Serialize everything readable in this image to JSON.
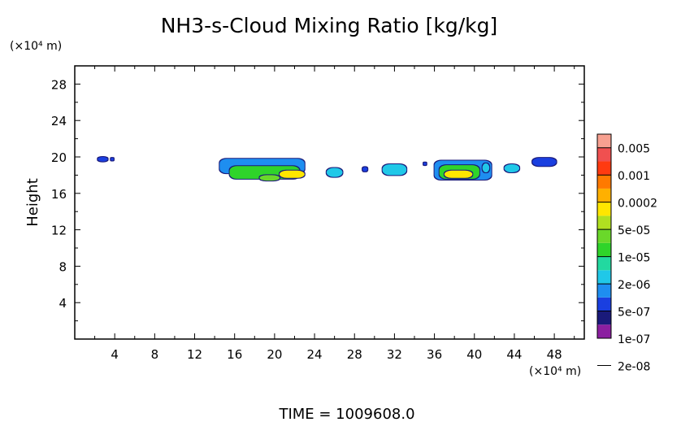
{
  "chart_data": {
    "type": "heatmap",
    "title": "NH3-s-Cloud Mixing Ratio [kg/kg]",
    "xlabel": "",
    "ylabel": "Height",
    "x_unit": "(×10⁴ m)",
    "y_unit": "(×10⁴ m)",
    "xlim": [
      0,
      51
    ],
    "ylim": [
      0,
      30
    ],
    "x_ticks": [
      4,
      8,
      12,
      16,
      20,
      24,
      28,
      32,
      36,
      40,
      44,
      48
    ],
    "y_ticks": [
      4,
      8,
      12,
      16,
      20,
      24,
      28
    ],
    "grid": false,
    "footer": "TIME  =  1009608.0",
    "colorbar": {
      "labels": [
        "0.005",
        "0.001",
        "0.0002",
        "5e-05",
        "1e-05",
        "2e-06",
        "5e-07",
        "1e-07",
        "2e-08"
      ],
      "colors": [
        "#8b1fa0",
        "#1a1a7a",
        "#1a3fe0",
        "#1e8ef0",
        "#20c8e8",
        "#22d9a0",
        "#2fd42a",
        "#6ad82a",
        "#b0e020",
        "#ffe600",
        "#ffb000",
        "#ff7a00",
        "#ff3a10",
        "#f05050",
        "#f7a090"
      ]
    },
    "features": [
      {
        "x0": 2.3,
        "x1": 3.3,
        "y0": 19.5,
        "y1": 20.0,
        "level": 2
      },
      {
        "x0": 3.6,
        "x1": 3.9,
        "y0": 19.6,
        "y1": 19.9,
        "level": 2
      },
      {
        "x0": 14.5,
        "x1": 23.0,
        "y0": 18.2,
        "y1": 19.8,
        "level": 3
      },
      {
        "x0": 15.5,
        "x1": 22.5,
        "y0": 17.6,
        "y1": 19.0,
        "level": 6
      },
      {
        "x0": 20.5,
        "x1": 23.0,
        "y0": 17.7,
        "y1": 18.5,
        "level": 9
      },
      {
        "x0": 18.5,
        "x1": 20.5,
        "y0": 17.4,
        "y1": 18.0,
        "level": 7
      },
      {
        "x0": 25.2,
        "x1": 26.8,
        "y0": 17.8,
        "y1": 18.8,
        "level": 4
      },
      {
        "x0": 28.8,
        "x1": 29.3,
        "y0": 18.4,
        "y1": 18.9,
        "level": 2
      },
      {
        "x0": 30.8,
        "x1": 33.2,
        "y0": 18.0,
        "y1": 19.2,
        "level": 4
      },
      {
        "x0": 34.9,
        "x1": 35.2,
        "y0": 19.1,
        "y1": 19.4,
        "level": 2
      },
      {
        "x0": 36.0,
        "x1": 41.7,
        "y0": 17.5,
        "y1": 19.6,
        "level": 3
      },
      {
        "x0": 36.5,
        "x1": 40.5,
        "y0": 17.6,
        "y1": 19.1,
        "level": 6
      },
      {
        "x0": 37.0,
        "x1": 39.8,
        "y0": 17.7,
        "y1": 18.5,
        "level": 9
      },
      {
        "x0": 40.8,
        "x1": 41.5,
        "y0": 18.3,
        "y1": 19.3,
        "level": 4
      },
      {
        "x0": 43.0,
        "x1": 44.5,
        "y0": 18.3,
        "y1": 19.2,
        "level": 4
      },
      {
        "x0": 45.8,
        "x1": 48.2,
        "y0": 19.0,
        "y1": 19.9,
        "level": 2
      }
    ]
  }
}
